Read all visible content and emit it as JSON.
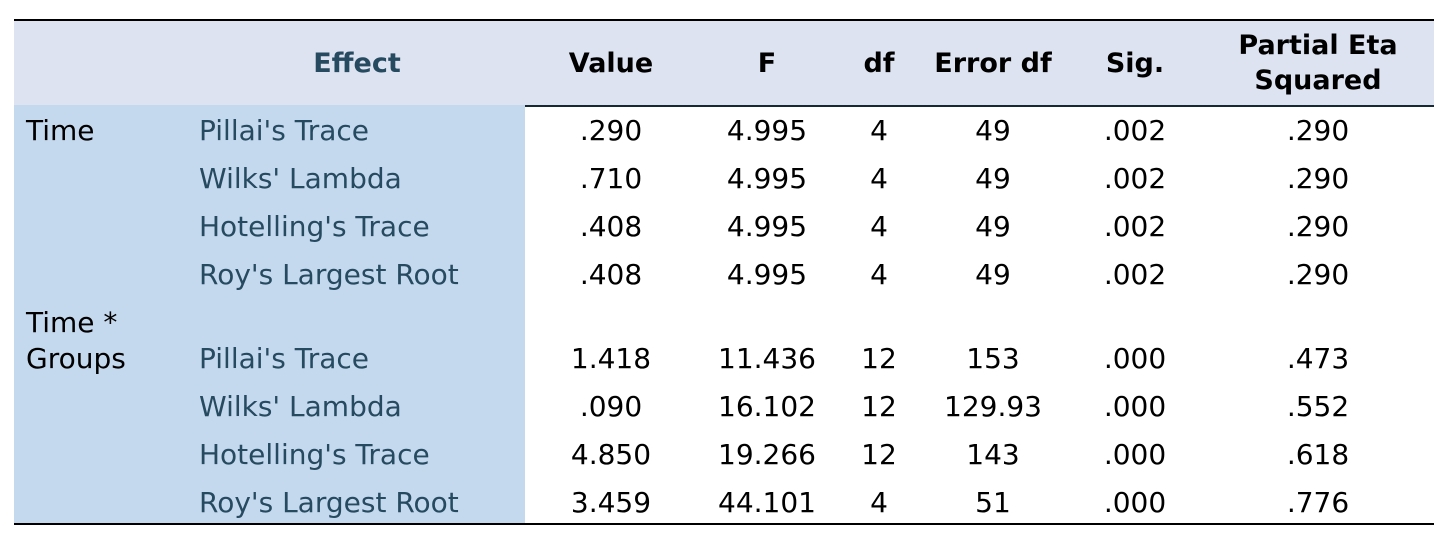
{
  "header": [
    "Effect",
    "Value",
    "F",
    "df",
    "Error df",
    "Sig.",
    "Partial Eta Squared"
  ],
  "groups": [
    {
      "label": "Time",
      "rows": [
        {
          "effect": "Pillai's Trace",
          "cells": [
            ".290",
            "4.995",
            "4",
            "49",
            ".002",
            ".290"
          ]
        },
        {
          "effect": "Wilks' Lambda",
          "cells": [
            ".710",
            "4.995",
            "4",
            "49",
            ".002",
            ".290"
          ]
        },
        {
          "effect": "Hotelling's Trace",
          "cells": [
            ".408",
            "4.995",
            "4",
            "49",
            ".002",
            ".290"
          ]
        },
        {
          "effect": "Roy's Largest Root",
          "cells": [
            ".408",
            "4.995",
            "4",
            "49",
            ".002",
            ".290"
          ]
        }
      ]
    },
    {
      "label": "Time * Groups",
      "rows": [
        {
          "effect": "Pillai's Trace",
          "cells": [
            "1.418",
            "11.436",
            "12",
            "153",
            ".000",
            ".473"
          ]
        },
        {
          "effect": "Wilks' Lambda",
          "cells": [
            ".090",
            "16.102",
            "12",
            "129.93",
            ".000",
            ".552"
          ]
        },
        {
          "effect": "Hotelling's Trace",
          "cells": [
            "4.850",
            "19.266",
            "12",
            "143",
            ".000",
            ".618"
          ]
        },
        {
          "effect": "Roy's Largest Root",
          "cells": [
            "3.459",
            "44.101",
            "4",
            "51",
            ".000",
            ".776"
          ]
        }
      ]
    }
  ]
}
